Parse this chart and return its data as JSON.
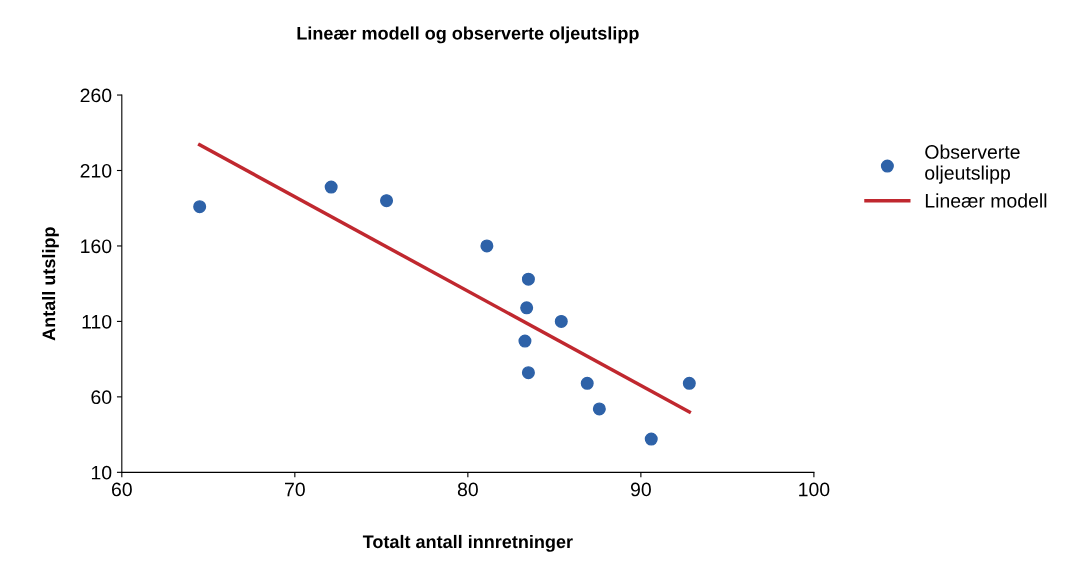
{
  "chart_data": {
    "type": "scatter",
    "title": "Lineær modell og observerte oljeutslipp",
    "xlabel": "Totalt antall innretninger",
    "ylabel": "Antall utslipp",
    "xlim": [
      60,
      100
    ],
    "xticks": [
      60,
      70,
      80,
      90,
      100
    ],
    "ylim": [
      10,
      260
    ],
    "yticks": [
      10,
      60,
      110,
      160,
      210,
      260
    ],
    "grid": false,
    "legend": "right",
    "series": [
      {
        "name": "Observerte oljeutslipp",
        "marker": "circle",
        "color": "#2e62a8",
        "x": [
          64.5,
          72.1,
          75.3,
          81.1,
          83.5,
          83.4,
          85.4,
          83.3,
          83.5,
          86.9,
          87.6,
          90.6,
          92.8
        ],
        "values": [
          186,
          199,
          190,
          160,
          138,
          119,
          110,
          97,
          76,
          69,
          52,
          32,
          69
        ]
      },
      {
        "name": "Lineær modell",
        "type": "line",
        "marker": "none",
        "color": "#c0282f",
        "x": [
          64.5,
          92.8
        ],
        "values": [
          227,
          50
        ]
      }
    ]
  }
}
